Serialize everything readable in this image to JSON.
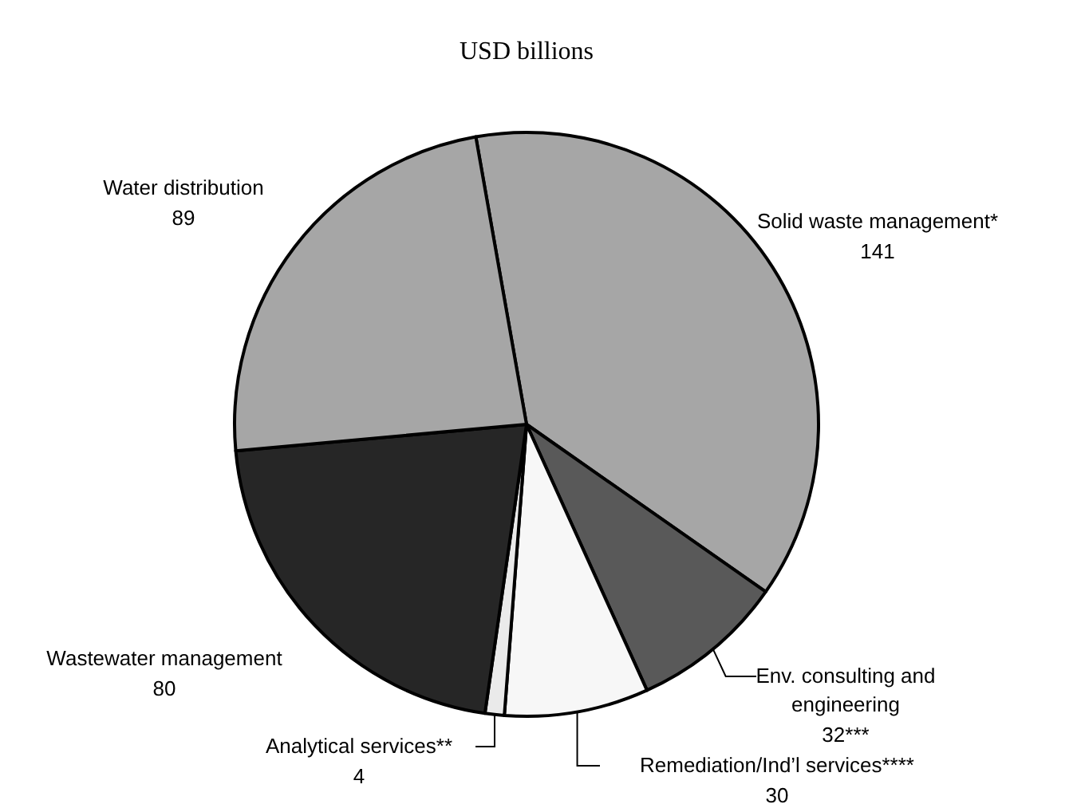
{
  "chart_data": {
    "type": "pie",
    "title": "USD billions",
    "categories": [
      "Solid waste management*",
      "Env. consulting and engineering",
      "Remediation/Ind’l services****",
      "Analytical services**",
      "Wastewater management",
      "Water distribution"
    ],
    "values": [
      141,
      32,
      30,
      4,
      80,
      89
    ],
    "value_labels": [
      "141",
      "32***",
      "30",
      "4",
      "80",
      "89"
    ],
    "colors": [
      "#a6a6a6",
      "#595959",
      "#f7f7f7",
      "#eaeaea",
      "#262626",
      "#a6a6a6"
    ]
  }
}
